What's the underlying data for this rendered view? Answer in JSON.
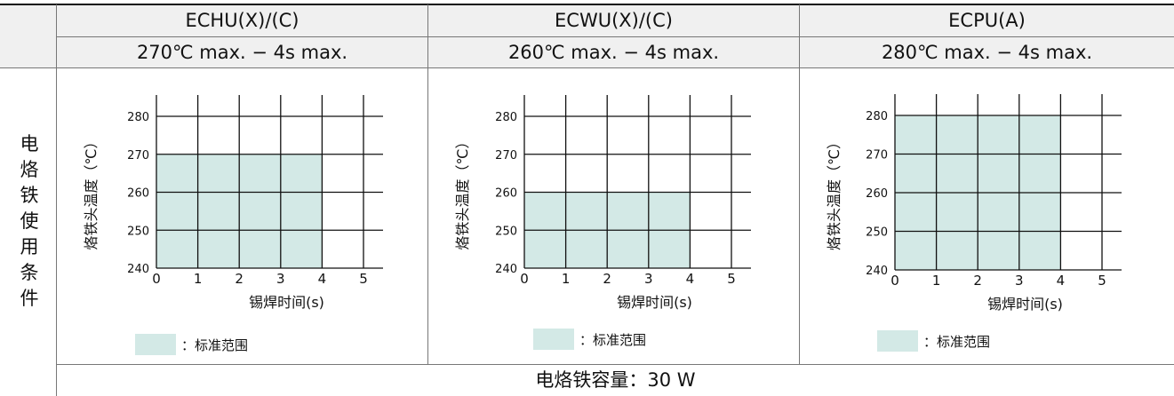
{
  "header": {
    "models": [
      "ECHU(X)/(C)",
      "ECWU(X)/(C)",
      "ECPU(A)"
    ],
    "conditions": [
      "270℃ max. − 4s max.",
      "260℃ max. − 4s max.",
      "280℃ max. − 4s max."
    ]
  },
  "side_label": [
    "电",
    "烙",
    "铁",
    "使",
    "用",
    "条",
    "件"
  ],
  "legend_label": "：标准范围",
  "footer": "电烙铁容量：30 W",
  "colors": {
    "standard_range_fill": "#d3e9e6",
    "header_bg": "#f0f0f0",
    "grid": "#111111"
  },
  "chart_data": [
    {
      "type": "area",
      "title": "ECHU(X)/(C)",
      "xlabel": "锡焊时间(s)",
      "ylabel": "烙铁头温度（℃）",
      "x_ticks": [
        "0",
        "1",
        "2",
        "3",
        "4",
        "5"
      ],
      "y_ticks": [
        "240",
        "250",
        "260",
        "270",
        "280"
      ],
      "xlim": [
        0,
        5
      ],
      "ylim": [
        240,
        280
      ],
      "standard_range": {
        "x": [
          0,
          4
        ],
        "y": [
          240,
          270
        ]
      }
    },
    {
      "type": "area",
      "title": "ECWU(X)/(C)",
      "xlabel": "锡焊时间(s)",
      "ylabel": "烙铁头温度（℃）",
      "x_ticks": [
        "0",
        "1",
        "2",
        "3",
        "4",
        "5"
      ],
      "y_ticks": [
        "240",
        "250",
        "260",
        "270",
        "280"
      ],
      "xlim": [
        0,
        5
      ],
      "ylim": [
        240,
        280
      ],
      "standard_range": {
        "x": [
          0,
          4
        ],
        "y": [
          240,
          260
        ]
      }
    },
    {
      "type": "area",
      "title": "ECPU(A)",
      "xlabel": "锡焊时间(s)",
      "ylabel": "烙铁头温度（℃）",
      "x_ticks": [
        "0",
        "1",
        "2",
        "3",
        "4",
        "5"
      ],
      "y_ticks": [
        "240",
        "250",
        "260",
        "270",
        "280"
      ],
      "xlim": [
        0,
        5
      ],
      "ylim": [
        240,
        280
      ],
      "standard_range": {
        "x": [
          0,
          4
        ],
        "y": [
          240,
          280
        ]
      }
    }
  ]
}
